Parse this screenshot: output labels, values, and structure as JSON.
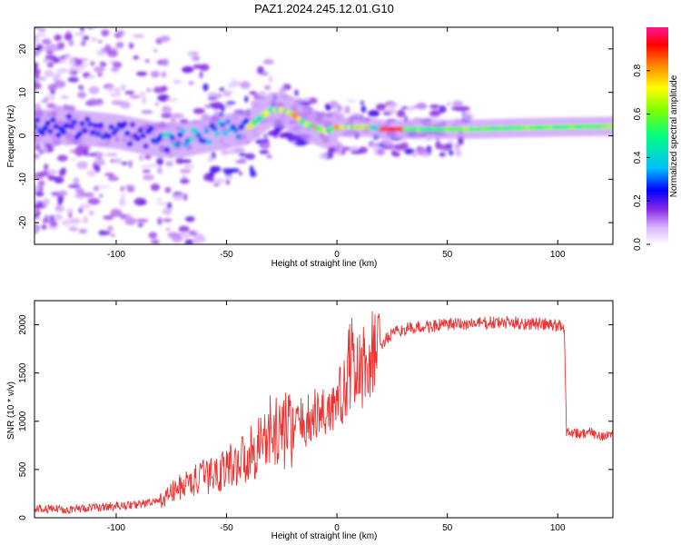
{
  "title": "PAZ1.2024.245.12.01.G10",
  "chart_data": [
    {
      "type": "heatmap",
      "title": "",
      "xlabel": "Height of straight line (km)",
      "ylabel": "Frequency (Hz)",
      "xlim": [
        -137,
        125
      ],
      "ylim": [
        -25,
        25
      ],
      "xticks": [
        -100,
        -50,
        0,
        50,
        100
      ],
      "yticks": [
        -20,
        -10,
        0,
        10,
        20
      ],
      "colorbar": {
        "label": "Normalized spectral amplitude",
        "range": [
          0,
          1
        ],
        "ticks": [
          "0.0",
          "0.2",
          "0.4",
          "0.6",
          "0.8"
        ],
        "colors": [
          "#ffffff",
          "#d9b3ff",
          "#8a2be2",
          "#0000ff",
          "#00bfff",
          "#00ff7f",
          "#7fff00",
          "#ffff00",
          "#ff8c00",
          "#ff0000",
          "#ff1493"
        ]
      },
      "ridge_frequency": {
        "x": [
          -137,
          -120,
          -100,
          -90,
          -80,
          -70,
          -60,
          -50,
          -40,
          -35,
          -30,
          -25,
          -20,
          -15,
          -10,
          -5,
          0,
          5,
          10,
          15,
          20,
          30,
          40,
          60,
          80,
          100,
          125
        ],
        "y": [
          2,
          2,
          1,
          0,
          -1,
          -1,
          0,
          1,
          2,
          4,
          6,
          6,
          5,
          3,
          2,
          1,
          2,
          2,
          2,
          2,
          1.5,
          1.5,
          1.5,
          1.5,
          1.8,
          2,
          2.2
        ]
      }
    },
    {
      "type": "line",
      "title": "",
      "xlabel": "Height of straight line (km)",
      "ylabel": "SNR (10 * v/v)",
      "xlim": [
        -137,
        125
      ],
      "ylim": [
        0,
        2250
      ],
      "xticks": [
        -100,
        -50,
        0,
        50,
        100
      ],
      "yticks": [
        0,
        500,
        1000,
        1500,
        2000
      ],
      "series": [
        {
          "color": "#ee3333",
          "x": [
            -137,
            -120,
            -100,
            -90,
            -80,
            -75,
            -70,
            -65,
            -60,
            -55,
            -50,
            -45,
            -40,
            -35,
            -30,
            -25,
            -20,
            -15,
            -10,
            -5,
            0,
            5,
            7,
            10,
            15,
            20,
            25,
            30,
            40,
            50,
            60,
            70,
            80,
            90,
            100,
            103,
            104,
            105,
            110,
            115,
            120,
            125
          ],
          "y": [
            90,
            90,
            120,
            140,
            170,
            260,
            330,
            380,
            420,
            460,
            520,
            580,
            650,
            780,
            880,
            900,
            940,
            980,
            1050,
            1100,
            1200,
            1350,
            1500,
            1500,
            1650,
            1800,
            1900,
            1950,
            1980,
            2000,
            2010,
            2020,
            2020,
            2010,
            1990,
            1980,
            880,
            900,
            870,
            880,
            850,
            860
          ]
        }
      ]
    }
  ]
}
